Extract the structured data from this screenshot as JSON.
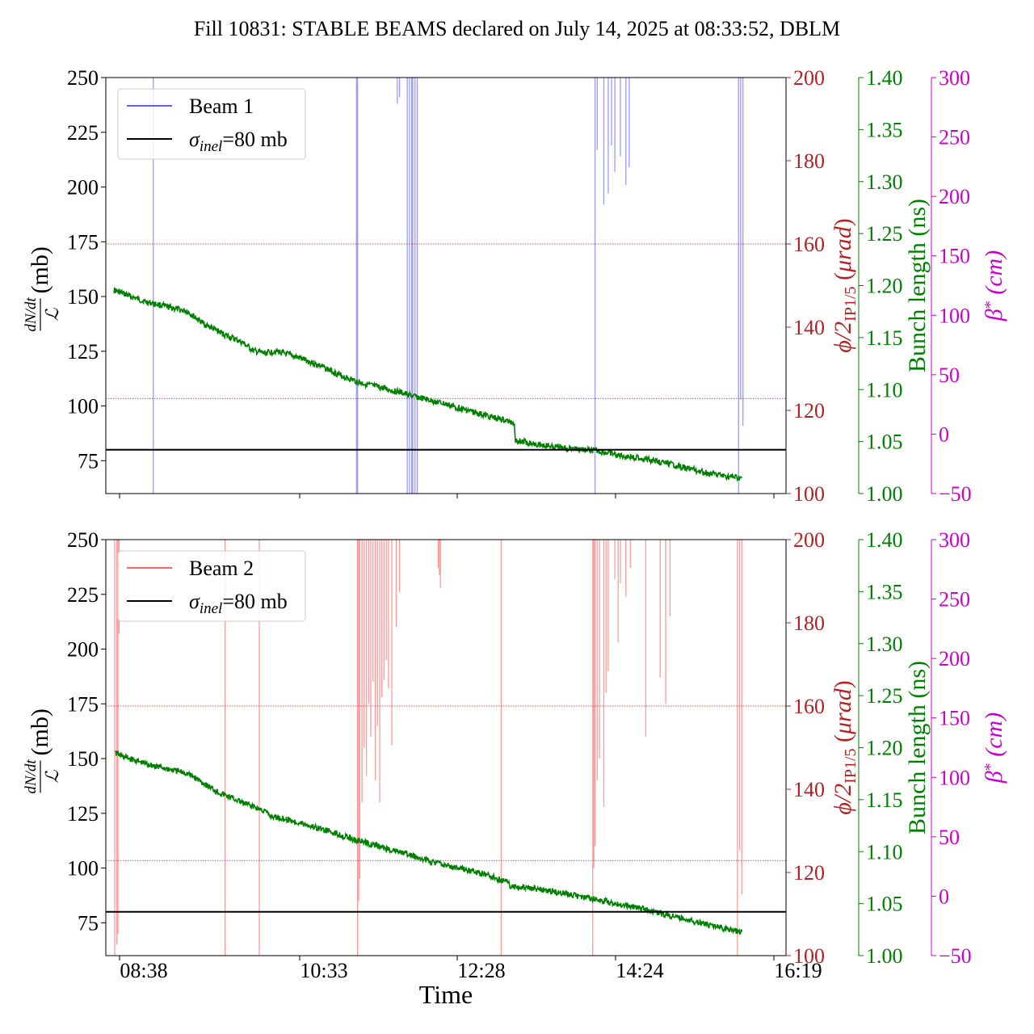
{
  "title": "Fill 10831: STABLE BEAMS declared on July 14, 2025 at 08:33:52, DBLM",
  "xlabel": "Time",
  "x_ticks": [
    "08:38",
    "10:33",
    "12:28",
    "14:24",
    "16:19"
  ],
  "colors": {
    "green": "#008000",
    "red": "#b22222",
    "magenta": "#cc00cc",
    "beam1": "#0000ff",
    "beam2": "#ff0000",
    "black": "#000000"
  },
  "chart_data": [
    {
      "type": "line",
      "panel": "top",
      "title": "",
      "xlabel": "",
      "ylabel_left": {
        "num": "dN/dt",
        "den": "ℒ",
        "unit": "(mb)"
      },
      "ylabel_right1": {
        "base": "ϕ/2",
        "sub": "IP1/5",
        "unit": "(μrad)"
      },
      "ylabel_right2": "Bunch length (ns)",
      "ylabel_right3": {
        "base": "β",
        "sup": "*",
        "unit": "(cm)"
      },
      "ylim": [
        60,
        250
      ],
      "yticks": [
        "75",
        "100",
        "125",
        "150",
        "175",
        "200",
        "225",
        "250"
      ],
      "ylim_right1": [
        100,
        200
      ],
      "yticks_right1": [
        "100",
        "120",
        "140",
        "160",
        "180",
        "200"
      ],
      "ylim_right2": [
        1.0,
        1.4
      ],
      "yticks_right2": [
        "1.00",
        "1.05",
        "1.10",
        "1.15",
        "1.20",
        "1.25",
        "1.30",
        "1.35",
        "1.40"
      ],
      "ylim_right3": [
        -50,
        300
      ],
      "yticks_right3": [
        "−50",
        "0",
        "50",
        "100",
        "150",
        "200",
        "250",
        "300"
      ],
      "xlim_minutes": [
        -14,
        602
      ],
      "hline_phi_urad": 160,
      "hline_beta_cm": 30,
      "sigma_inel_mb": 80,
      "legend": [
        "Beam 1",
        "σinel=80 mb"
      ],
      "legend_placement": "upper-left",
      "series": [
        {
          "name": "Beam 1",
          "color": "#0000ff",
          "spikes": [
            {
              "t": 29,
              "lo": 60,
              "hi": 250
            },
            {
              "t": 213,
              "lo": 60,
              "hi": 250
            },
            {
              "t": 214,
              "lo": 60,
              "hi": 250
            },
            {
              "t": 250,
              "lo": 238,
              "hi": 250
            },
            {
              "t": 252,
              "lo": 241,
              "hi": 250
            },
            {
              "t": 259,
              "lo": 60,
              "hi": 250
            },
            {
              "t": 261,
              "lo": 60,
              "hi": 250
            },
            {
              "t": 263,
              "lo": 60,
              "hi": 250
            },
            {
              "t": 264,
              "lo": 60,
              "hi": 250
            },
            {
              "t": 266,
              "lo": 60,
              "hi": 250
            },
            {
              "t": 268,
              "lo": 60,
              "hi": 250
            },
            {
              "t": 429,
              "lo": 60,
              "hi": 250
            },
            {
              "t": 431,
              "lo": 217,
              "hi": 250
            },
            {
              "t": 437,
              "lo": 192,
              "hi": 250
            },
            {
              "t": 441,
              "lo": 197,
              "hi": 250
            },
            {
              "t": 444,
              "lo": 219,
              "hi": 250
            },
            {
              "t": 447,
              "lo": 207,
              "hi": 250
            },
            {
              "t": 452,
              "lo": 214,
              "hi": 250
            },
            {
              "t": 457,
              "lo": 201,
              "hi": 250
            },
            {
              "t": 460,
              "lo": 209,
              "hi": 250
            },
            {
              "t": 559,
              "lo": 60,
              "hi": 250
            },
            {
              "t": 561,
              "lo": 103,
              "hi": 250
            },
            {
              "t": 563,
              "lo": 91,
              "hi": 250
            }
          ]
        },
        {
          "name": "Bunch length",
          "color": "#008000",
          "t_minutes": [
            -7,
            0,
            20,
            40,
            60,
            75,
            95,
            110,
            120,
            130,
            140,
            160,
            180,
            200,
            215,
            230,
            250,
            270,
            290,
            310,
            330,
            345,
            356,
            357,
            370,
            390,
            410,
            430,
            450,
            470,
            490,
            510,
            530,
            550,
            562
          ],
          "ns": [
            1.196,
            1.193,
            1.185,
            1.18,
            1.175,
            1.163,
            1.152,
            1.145,
            1.137,
            1.135,
            1.137,
            1.131,
            1.123,
            1.113,
            1.107,
            1.103,
            1.098,
            1.092,
            1.087,
            1.081,
            1.075,
            1.071,
            1.068,
            1.051,
            1.049,
            1.045,
            1.043,
            1.041,
            1.037,
            1.034,
            1.03,
            1.025,
            1.02,
            1.016,
            1.015
          ]
        }
      ]
    },
    {
      "type": "line",
      "panel": "bottom",
      "title": "",
      "xlabel": "Time",
      "ylabel_left": {
        "num": "dN/dt",
        "den": "ℒ",
        "unit": "(mb)"
      },
      "ylabel_right1": {
        "base": "ϕ/2",
        "sub": "IP1/5",
        "unit": "(μrad)"
      },
      "ylabel_right2": "Bunch length (ns)",
      "ylabel_right3": {
        "base": "β",
        "sup": "*",
        "unit": "(cm)"
      },
      "ylim": [
        60,
        250
      ],
      "yticks": [
        "75",
        "100",
        "125",
        "150",
        "175",
        "200",
        "225",
        "250"
      ],
      "ylim_right1": [
        100,
        200
      ],
      "yticks_right1": [
        "100",
        "120",
        "140",
        "160",
        "180",
        "200"
      ],
      "ylim_right2": [
        1.0,
        1.4
      ],
      "yticks_right2": [
        "1.00",
        "1.05",
        "1.10",
        "1.15",
        "1.20",
        "1.25",
        "1.30",
        "1.35",
        "1.40"
      ],
      "ylim_right3": [
        -50,
        300
      ],
      "yticks_right3": [
        "−50",
        "0",
        "50",
        "100",
        "150",
        "200",
        "250",
        "300"
      ],
      "xlim_minutes": [
        -14,
        602
      ],
      "hline_phi_urad": 160,
      "hline_beta_cm": 30,
      "sigma_inel_mb": 80,
      "legend": [
        "Beam 2",
        "σinel=80 mb"
      ],
      "legend_placement": "upper-left",
      "series": [
        {
          "name": "Beam 2",
          "color": "#ff0000",
          "spikes": [
            {
              "t": -6,
              "lo": 60,
              "hi": 250
            },
            {
              "t": -4,
              "lo": 65,
              "hi": 250
            },
            {
              "t": -3,
              "lo": 70,
              "hi": 250
            },
            {
              "t": -2,
              "lo": 207,
              "hi": 250
            },
            {
              "t": 94,
              "lo": 60,
              "hi": 250
            },
            {
              "t": 125,
              "lo": 60,
              "hi": 250
            },
            {
              "t": 214,
              "lo": 60,
              "hi": 250
            },
            {
              "t": 215,
              "lo": 85,
              "hi": 250
            },
            {
              "t": 216,
              "lo": 95,
              "hi": 250
            },
            {
              "t": 218,
              "lo": 130,
              "hi": 250
            },
            {
              "t": 220,
              "lo": 155,
              "hi": 250
            },
            {
              "t": 222,
              "lo": 142,
              "hi": 250
            },
            {
              "t": 224,
              "lo": 175,
              "hi": 250
            },
            {
              "t": 226,
              "lo": 160,
              "hi": 250
            },
            {
              "t": 228,
              "lo": 185,
              "hi": 250
            },
            {
              "t": 230,
              "lo": 140,
              "hi": 250
            },
            {
              "t": 232,
              "lo": 165,
              "hi": 250
            },
            {
              "t": 234,
              "lo": 130,
              "hi": 250
            },
            {
              "t": 236,
              "lo": 178,
              "hi": 250
            },
            {
              "t": 238,
              "lo": 186,
              "hi": 250
            },
            {
              "t": 240,
              "lo": 195,
              "hi": 250
            },
            {
              "t": 242,
              "lo": 182,
              "hi": 250
            },
            {
              "t": 245,
              "lo": 156,
              "hi": 250
            },
            {
              "t": 249,
              "lo": 210,
              "hi": 250
            },
            {
              "t": 252,
              "lo": 226,
              "hi": 250
            },
            {
              "t": 287,
              "lo": 237,
              "hi": 250
            },
            {
              "t": 288,
              "lo": 234,
              "hi": 250
            },
            {
              "t": 289,
              "lo": 228,
              "hi": 250
            },
            {
              "t": 344,
              "lo": 60,
              "hi": 250
            },
            {
              "t": 427,
              "lo": 60,
              "hi": 250
            },
            {
              "t": 428,
              "lo": 100,
              "hi": 250
            },
            {
              "t": 429,
              "lo": 110,
              "hi": 250
            },
            {
              "t": 431,
              "lo": 140,
              "hi": 250
            },
            {
              "t": 433,
              "lo": 150,
              "hi": 250
            },
            {
              "t": 437,
              "lo": 128,
              "hi": 250
            },
            {
              "t": 439,
              "lo": 180,
              "hi": 250
            },
            {
              "t": 441,
              "lo": 190,
              "hi": 250
            },
            {
              "t": 447,
              "lo": 232,
              "hi": 250
            },
            {
              "t": 450,
              "lo": 203,
              "hi": 250
            },
            {
              "t": 452,
              "lo": 230,
              "hi": 250
            },
            {
              "t": 457,
              "lo": 224,
              "hi": 250
            },
            {
              "t": 461,
              "lo": 237,
              "hi": 250
            },
            {
              "t": 475,
              "lo": 160,
              "hi": 250
            },
            {
              "t": 488,
              "lo": 187,
              "hi": 250
            },
            {
              "t": 493,
              "lo": 175,
              "hi": 250
            },
            {
              "t": 497,
              "lo": 215,
              "hi": 250
            },
            {
              "t": 558,
              "lo": 60,
              "hi": 250
            },
            {
              "t": 560,
              "lo": 108,
              "hi": 250
            },
            {
              "t": 562,
              "lo": 88,
              "hi": 250
            }
          ]
        },
        {
          "name": "Bunch length",
          "color": "#008000",
          "t_minutes": [
            -5,
            0,
            20,
            40,
            60,
            70,
            80,
            90,
            110,
            130,
            135,
            150,
            170,
            190,
            210,
            230,
            250,
            270,
            290,
            310,
            330,
            340,
            350,
            352,
            370,
            390,
            410,
            430,
            450,
            470,
            490,
            510,
            530,
            550,
            562
          ],
          "ns": [
            1.195,
            1.192,
            1.185,
            1.18,
            1.175,
            1.169,
            1.162,
            1.156,
            1.147,
            1.139,
            1.134,
            1.131,
            1.125,
            1.119,
            1.112,
            1.106,
            1.1,
            1.094,
            1.088,
            1.083,
            1.078,
            1.074,
            1.071,
            1.067,
            1.065,
            1.062,
            1.058,
            1.054,
            1.05,
            1.046,
            1.04,
            1.035,
            1.03,
            1.025,
            1.023
          ]
        }
      ]
    }
  ]
}
